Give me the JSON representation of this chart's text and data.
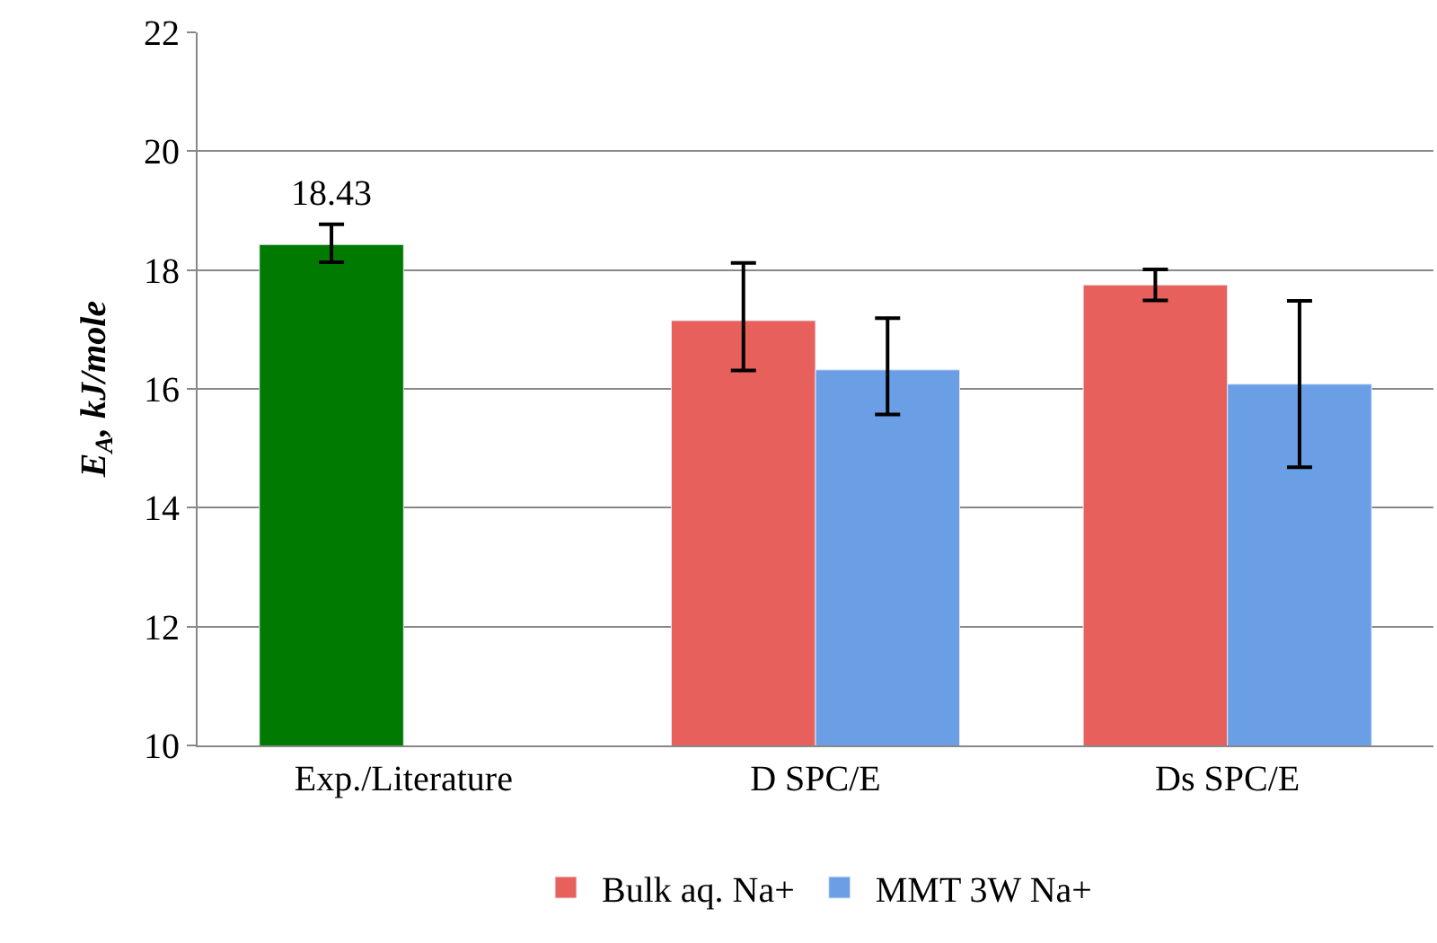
{
  "chart_data": {
    "type": "bar",
    "categories": [
      "Exp./Literature",
      "D SPC/E",
      "Ds SPC/E"
    ],
    "ylabel": "E$_{A}$, kJ/mole",
    "series": [
      {
        "name": "Bulk aq. Na+",
        "color": "#e8605c",
        "colors": [
          "#007a00",
          "#e8605c",
          "#e8605c"
        ],
        "values": [
          18.43,
          17.15,
          17.75
        ],
        "errors": [
          [
            18.13,
            18.77
          ],
          [
            16.31,
            18.12
          ],
          [
            17.49,
            18.01
          ]
        ],
        "value_labels": [
          "18.43",
          null,
          null
        ]
      },
      {
        "name": "MMT 3W Na+",
        "color": "#6a9fe6",
        "values": [
          null,
          16.32,
          16.08
        ],
        "errors": [
          null,
          [
            15.57,
            17.19
          ],
          [
            14.68,
            17.48
          ]
        ]
      }
    ],
    "ylim": [
      10,
      22
    ],
    "yticks": [
      10,
      12,
      14,
      16,
      18,
      20,
      22
    ],
    "grid": "y",
    "legend": "bottom"
  }
}
